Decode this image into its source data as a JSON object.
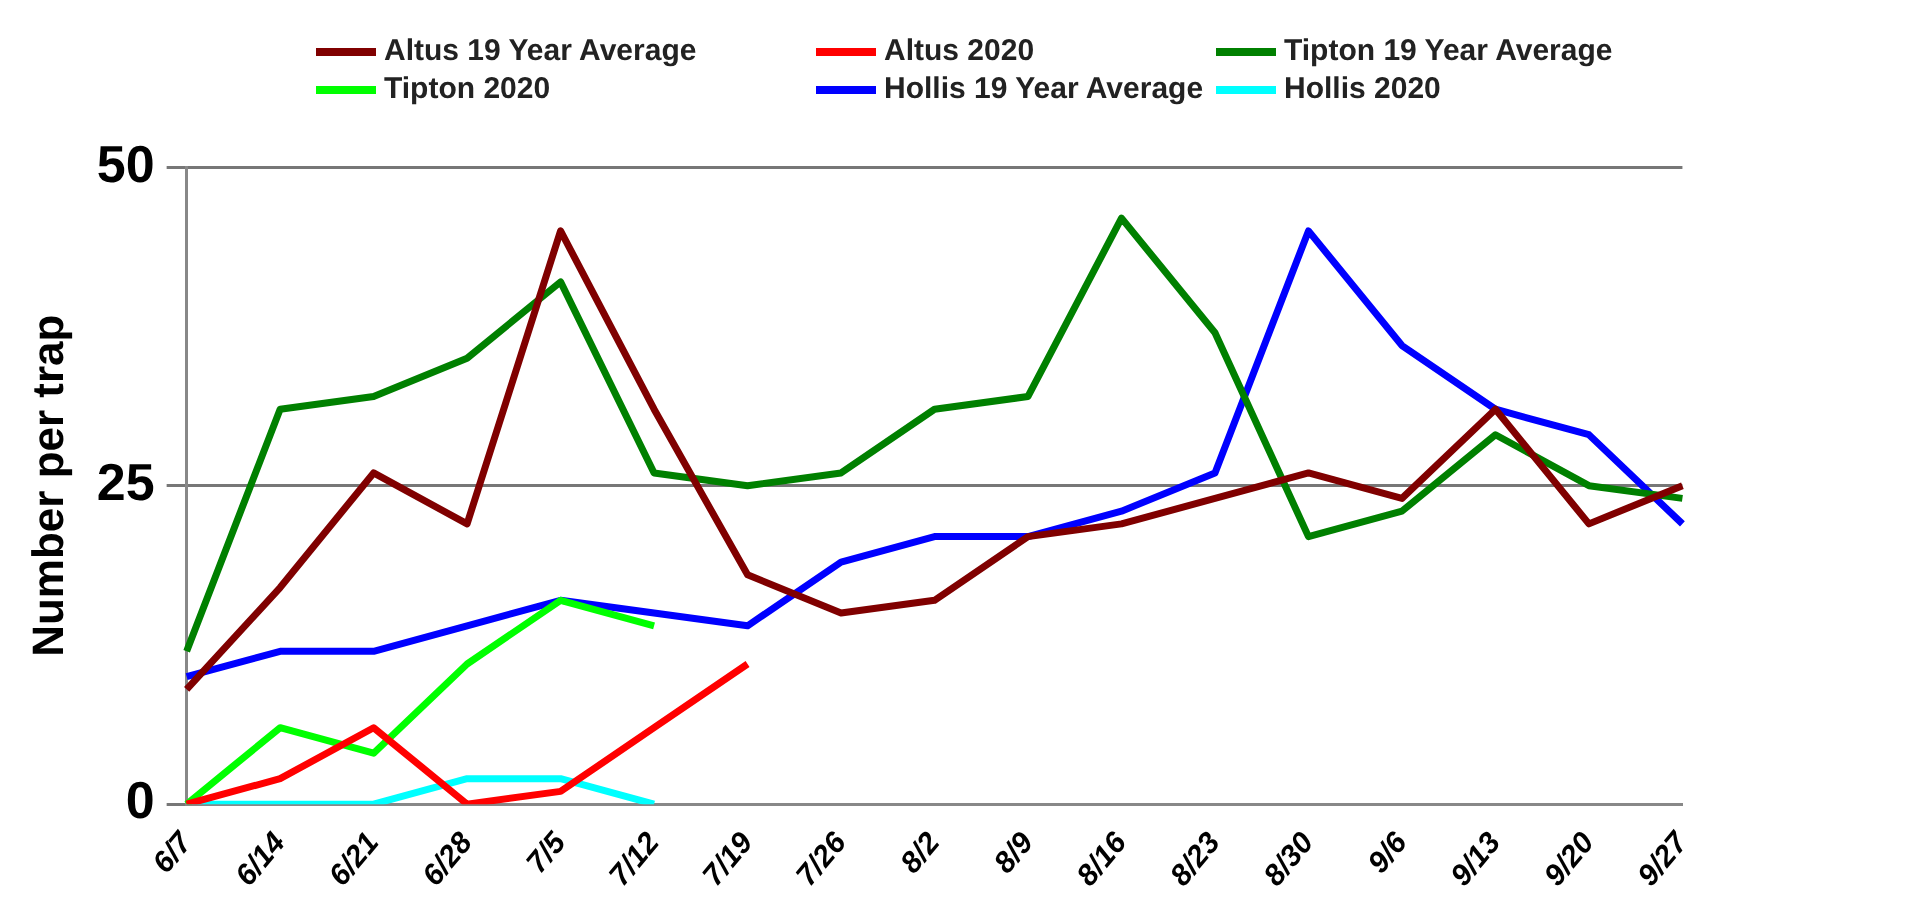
{
  "chart_data": {
    "type": "line",
    "ylabel": "Number per trap",
    "categories": [
      "6/7",
      "6/14",
      "6/21",
      "6/28",
      "7/5",
      "7/12",
      "7/19",
      "7/26",
      "8/2",
      "8/9",
      "8/16",
      "8/23",
      "8/30",
      "9/6",
      "9/13",
      "9/20",
      "9/27"
    ],
    "series": [
      {
        "name": "Altus 19 Year Average",
        "color": "#800000",
        "values": [
          9,
          17,
          26,
          22,
          45,
          31,
          18,
          15,
          16,
          21,
          22,
          24,
          26,
          24,
          31,
          22,
          25
        ]
      },
      {
        "name": "Altus 2020",
        "color": "#ff0000",
        "values": [
          0,
          2,
          6,
          0,
          1,
          6,
          11,
          null,
          null,
          null,
          null,
          null,
          null,
          null,
          null,
          null,
          null
        ]
      },
      {
        "name": "Tipton 19 Year Average",
        "color": "#008000",
        "values": [
          12,
          31,
          32,
          35,
          41,
          26,
          25,
          26,
          31,
          32,
          46,
          37,
          21,
          23,
          29,
          25,
          24
        ]
      },
      {
        "name": "Tipton 2020",
        "color": "#00ff00",
        "values": [
          0,
          6,
          4,
          11,
          16,
          14,
          null,
          null,
          null,
          null,
          null,
          null,
          null,
          null,
          null,
          null,
          null
        ]
      },
      {
        "name": "Hollis 19 Year Average",
        "color": "#0000ff",
        "values": [
          10,
          12,
          12,
          14,
          16,
          15,
          14,
          19,
          21,
          21,
          23,
          26,
          45,
          36,
          31,
          29,
          22
        ]
      },
      {
        "name": "Hollis 2020",
        "color": "#00ffff",
        "values": [
          0,
          0,
          0,
          2,
          2,
          0,
          null,
          null,
          null,
          null,
          null,
          null,
          null,
          null,
          null,
          null,
          null
        ]
      }
    ],
    "ylim": [
      0,
      50
    ],
    "yticks": [
      0,
      25,
      50
    ],
    "grid": "y",
    "legend": "top",
    "marker": "none",
    "line_style": "solid"
  }
}
